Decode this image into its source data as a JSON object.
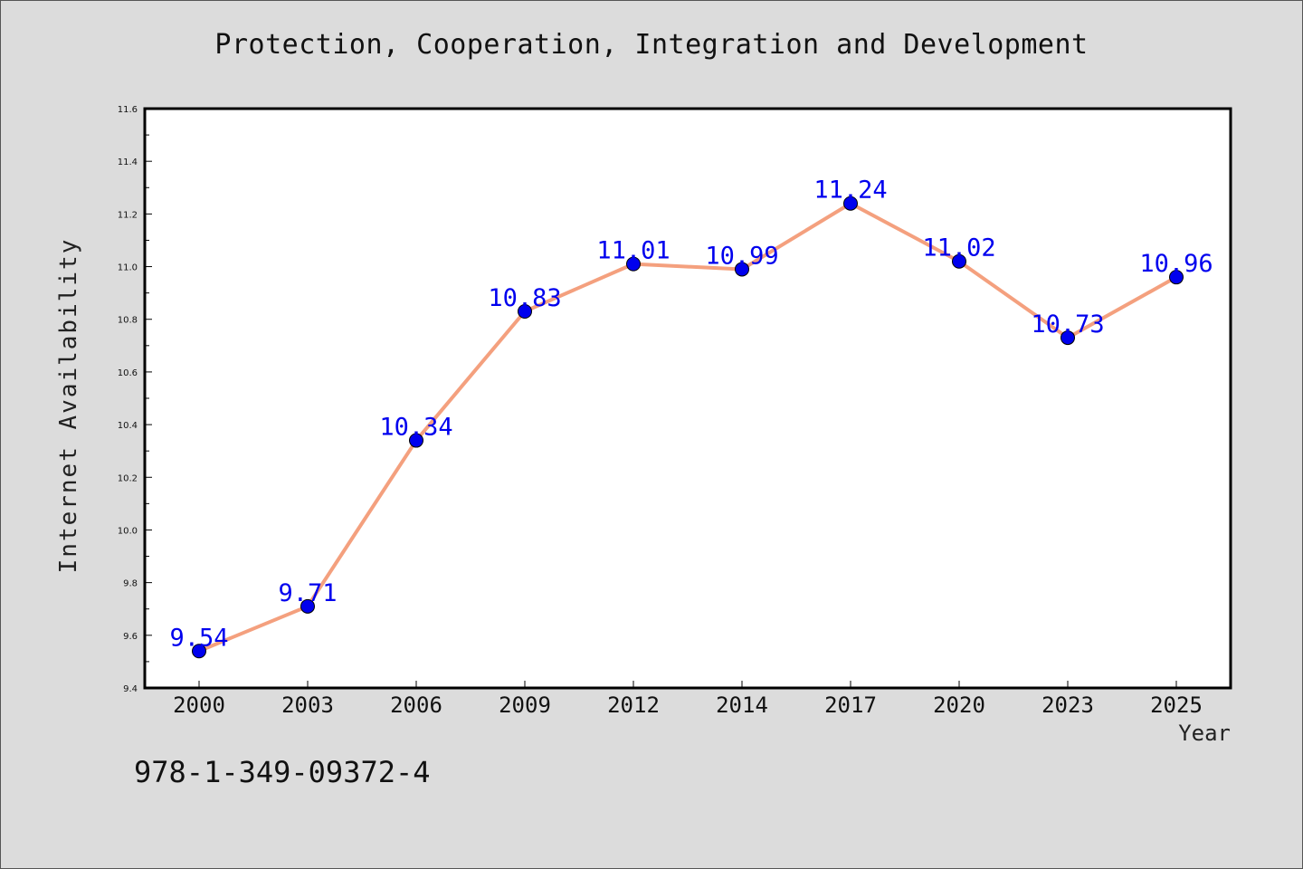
{
  "chart_data": {
    "type": "line",
    "title": "Protection, Cooperation, Integration and Development",
    "xlabel": "Year",
    "ylabel": "Internet Availability",
    "categories": [
      "2000",
      "2003",
      "2006",
      "2009",
      "2012",
      "2014",
      "2017",
      "2020",
      "2023",
      "2025"
    ],
    "series": [
      {
        "values": [
          9.54,
          9.71,
          10.34,
          10.83,
          11.01,
          10.99,
          11.24,
          11.02,
          10.73,
          10.96
        ],
        "data_labels": [
          "9.54",
          "9.71",
          "10.34",
          "10.83",
          "11.01",
          "10.99",
          "11.24",
          "11.02",
          "10.73",
          "10.96"
        ]
      }
    ],
    "ylim": [
      9.4,
      11.6
    ],
    "yticks": [
      "9.4",
      "9.6",
      "9.8",
      "10.0",
      "10.2",
      "10.4",
      "10.6",
      "10.8",
      "11.0",
      "11.2",
      "11.4",
      "11.6"
    ],
    "grid": false,
    "line_color": "#f4a07e",
    "marker_color": "#0000ee",
    "label_color": "#0000ee"
  },
  "footer": {
    "isbn": "978-1-349-09372-4"
  }
}
